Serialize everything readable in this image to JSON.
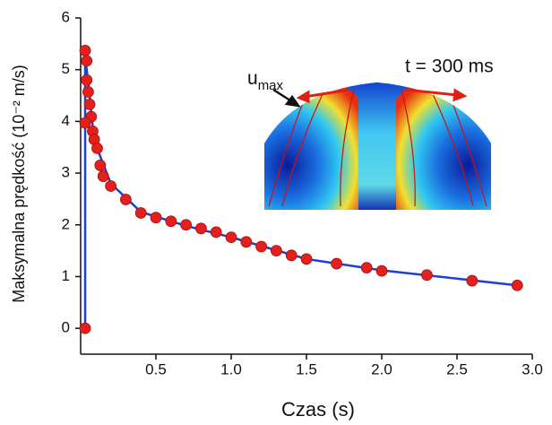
{
  "chart_data": {
    "type": "scatter",
    "x_label": "Czas (s)",
    "y_label": "Maksymalna prędkość (10⁻² m/s)",
    "inset": {
      "arrow_label": "u",
      "arrow_label_sub": "max",
      "time_label": "t = 300 ms"
    },
    "xlim": [
      0,
      3.0
    ],
    "ylim": [
      -0.5,
      6
    ],
    "xticks": [
      0.5,
      {
        "value": 1,
        "label": "1.0"
      },
      1.5,
      {
        "value": 2,
        "label": "2.0"
      },
      2.5,
      {
        "value": 3,
        "label": "3.0"
      }
    ],
    "yticks": [
      0,
      1,
      2,
      3,
      4,
      5,
      6
    ],
    "series": [
      {
        "mode": "lines",
        "color": "#1c3fd8",
        "x": [
          0.03,
          0.03,
          0.04,
          0.06,
          0.08,
          0.12,
          0.2,
          0.4,
          0.7,
          1.0,
          1.5,
          2.0,
          2.5,
          2.9
        ],
        "values": [
          0,
          5.3,
          5.0,
          4.5,
          3.9,
          3.4,
          2.8,
          2.25,
          1.98,
          1.76,
          1.34,
          1.12,
          0.96,
          0.83
        ]
      },
      {
        "mode": "markers",
        "color": "#e3201b",
        "x": [
          0.03,
          0.03,
          0.04,
          0.04,
          0.05,
          0.06,
          0.07,
          0.03,
          0.08,
          0.09,
          0.11,
          0.13,
          0.15,
          0.2,
          0.3,
          0.4,
          0.5,
          0.6,
          0.7,
          0.8,
          0.9,
          1.0,
          1.1,
          1.2,
          1.3,
          1.4,
          1.5,
          1.7,
          1.9,
          2.0,
          2.3,
          2.6,
          2.9
        ],
        "values": [
          0,
          5.37,
          5.17,
          4.8,
          4.57,
          4.33,
          4.09,
          3.97,
          3.81,
          3.65,
          3.48,
          3.15,
          2.94,
          2.75,
          2.49,
          2.23,
          2.14,
          2.07,
          2.0,
          1.93,
          1.86,
          1.76,
          1.67,
          1.58,
          1.5,
          1.41,
          1.34,
          1.25,
          1.17,
          1.11,
          1.03,
          0.92,
          0.83
        ]
      }
    ]
  }
}
